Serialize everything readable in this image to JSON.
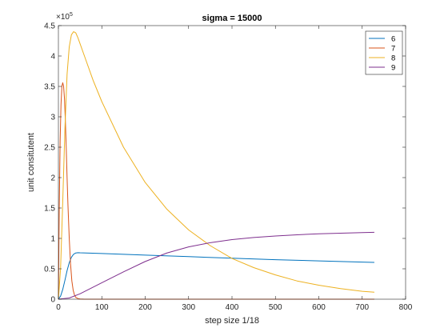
{
  "chart_data": {
    "type": "line",
    "title": "sigma = 15000",
    "xlabel": "step size 1/18",
    "ylabel": "unit consitutent",
    "xlim": [
      0,
      800
    ],
    "ylim": [
      0,
      450000
    ],
    "x_ticks": [
      0,
      100,
      200,
      300,
      400,
      500,
      600,
      700,
      800
    ],
    "x_tick_labels": [
      "0",
      "100",
      "200",
      "300",
      "400",
      "500",
      "600",
      "700",
      "800"
    ],
    "y_ticks": [
      0,
      50000,
      100000,
      150000,
      200000,
      250000,
      300000,
      350000,
      400000,
      450000
    ],
    "y_tick_labels": [
      "0",
      "0.5",
      "1",
      "1.5",
      "2",
      "2.5",
      "3",
      "3.5",
      "4",
      "4.5"
    ],
    "y_exponent_base": "×10",
    "y_exponent_power": "5",
    "grid": false,
    "legend_position": "top-right",
    "series": [
      {
        "name": "6",
        "color": "#0072BD",
        "x": [
          0,
          5,
          10,
          15,
          20,
          25,
          30,
          35,
          40,
          45,
          50,
          100,
          200,
          300,
          400,
          500,
          600,
          700,
          728
        ],
        "y": [
          0,
          5000,
          16000,
          31000,
          47000,
          60000,
          69000,
          74000,
          76000,
          76500,
          76300,
          75200,
          72600,
          70000,
          67500,
          65000,
          63000,
          61000,
          60500
        ]
      },
      {
        "name": "7",
        "color": "#D95319",
        "x": [
          0,
          2,
          4,
          6,
          8,
          10,
          12,
          14,
          16,
          18,
          20,
          22,
          25,
          28,
          31,
          34,
          37,
          40,
          45,
          50,
          60,
          728
        ],
        "y": [
          0,
          150000,
          260000,
          320000,
          350000,
          356000,
          350000,
          330000,
          295000,
          250000,
          200000,
          155000,
          100000,
          58000,
          30000,
          15000,
          7000,
          3000,
          1000,
          300,
          0,
          0
        ]
      },
      {
        "name": "8",
        "color": "#EDB120",
        "x": [
          0,
          5,
          10,
          15,
          20,
          25,
          30,
          35,
          40,
          45,
          50,
          60,
          80,
          100,
          150,
          200,
          250,
          300,
          350,
          400,
          450,
          500,
          550,
          600,
          650,
          700,
          728
        ],
        "y": [
          0,
          50000,
          160000,
          280000,
          370000,
          415000,
          435000,
          440000,
          438000,
          430000,
          420000,
          400000,
          360000,
          325000,
          250000,
          192000,
          148000,
          114000,
          88000,
          67000,
          52000,
          40000,
          30000,
          23000,
          17500,
          13000,
          11500
        ]
      },
      {
        "name": "9",
        "color": "#7E2F8E",
        "x": [
          0,
          25,
          50,
          75,
          100,
          150,
          200,
          250,
          300,
          350,
          400,
          450,
          500,
          550,
          600,
          650,
          700,
          728
        ],
        "y": [
          0,
          2000,
          9000,
          18000,
          27000,
          45000,
          62000,
          76000,
          86000,
          93000,
          98000,
          101500,
          104000,
          106000,
          107500,
          108500,
          109500,
          110000
        ]
      }
    ]
  }
}
